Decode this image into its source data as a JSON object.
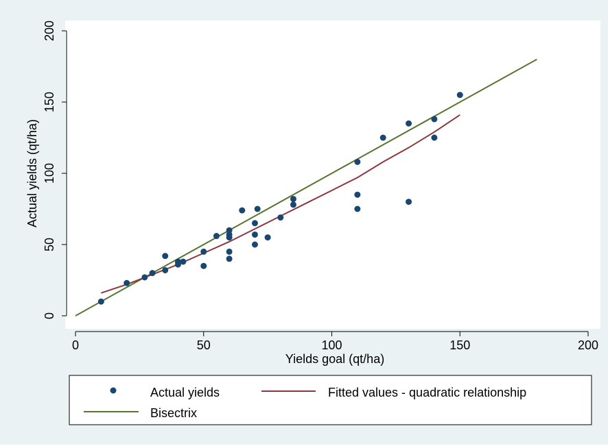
{
  "chart_data": {
    "type": "scatter",
    "xlabel": "Yields goal (qt/ha)",
    "ylabel": "Actual yields (qt/ha)",
    "xlim": [
      0,
      200
    ],
    "ylim": [
      0,
      200
    ],
    "x_ticks": [
      0,
      50,
      100,
      150,
      200
    ],
    "y_ticks": [
      0,
      50,
      100,
      150,
      200
    ],
    "grid": false,
    "legend_position": "bottom",
    "series": [
      {
        "name": "Actual yields",
        "kind": "scatter",
        "color": "#1a476f",
        "points": [
          [
            10,
            10
          ],
          [
            20,
            23
          ],
          [
            27,
            27
          ],
          [
            30,
            30
          ],
          [
            35,
            32
          ],
          [
            35,
            42
          ],
          [
            40,
            36
          ],
          [
            40,
            38
          ],
          [
            42,
            38
          ],
          [
            50,
            35
          ],
          [
            50,
            45
          ],
          [
            55,
            56
          ],
          [
            60,
            40
          ],
          [
            60,
            45
          ],
          [
            60,
            55
          ],
          [
            60,
            57
          ],
          [
            60,
            60
          ],
          [
            65,
            74
          ],
          [
            70,
            50
          ],
          [
            70,
            57
          ],
          [
            70,
            65
          ],
          [
            71,
            75
          ],
          [
            75,
            55
          ],
          [
            80,
            69
          ],
          [
            85,
            78
          ],
          [
            85,
            82
          ],
          [
            110,
            108
          ],
          [
            110,
            85
          ],
          [
            110,
            75
          ],
          [
            120,
            125
          ],
          [
            130,
            135
          ],
          [
            130,
            80
          ],
          [
            140,
            138
          ],
          [
            140,
            125
          ],
          [
            150,
            155
          ]
        ]
      },
      {
        "name": "Fitted values - quadratic relationship",
        "kind": "line",
        "color": "#90353b",
        "points": [
          [
            10,
            16
          ],
          [
            20,
            22
          ],
          [
            30,
            29
          ],
          [
            40,
            36
          ],
          [
            50,
            44
          ],
          [
            60,
            52
          ],
          [
            70,
            61
          ],
          [
            80,
            70
          ],
          [
            90,
            79
          ],
          [
            100,
            88
          ],
          [
            110,
            97
          ],
          [
            120,
            108
          ],
          [
            130,
            118
          ],
          [
            140,
            129
          ],
          [
            150,
            141
          ]
        ]
      },
      {
        "name": "Bisectrix",
        "kind": "line",
        "color": "#55752f",
        "points": [
          [
            0,
            0
          ],
          [
            180,
            180
          ]
        ]
      }
    ]
  },
  "legend": {
    "items": [
      {
        "label": "Actual yields",
        "kind": "marker",
        "color": "#1a476f"
      },
      {
        "label": "Fitted values - quadratic relationship",
        "kind": "line",
        "color": "#90353b"
      },
      {
        "label": "Bisectrix",
        "kind": "line",
        "color": "#55752f"
      }
    ]
  },
  "colors": {
    "outer_background": "#eaf2f3",
    "plot_background": "#ffffff"
  }
}
